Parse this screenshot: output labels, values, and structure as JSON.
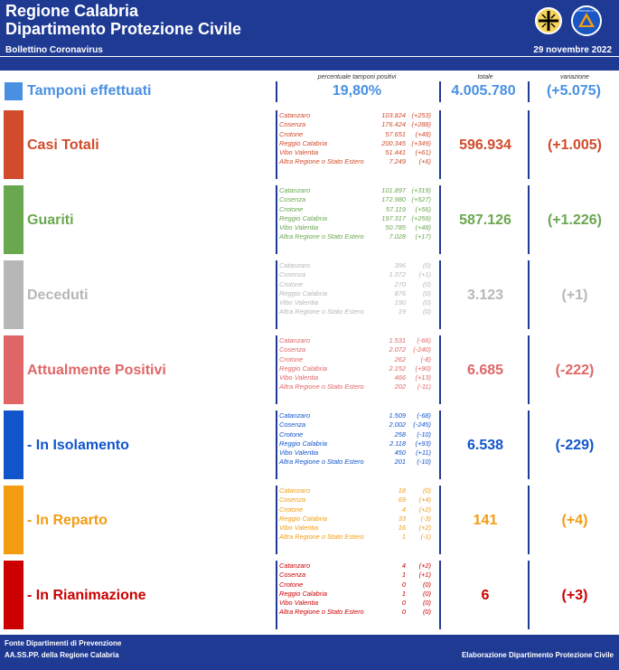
{
  "header": {
    "title_line1": "Regione Calabria",
    "title_line2": "Dipartimento Protezione Civile",
    "subtitle": "Bollettino Coronavirus",
    "date": "29 novembre 2022",
    "pc_logo_text": "PROTEZIONE CIVILE"
  },
  "column_headers": {
    "percent": "percentuale tamponi positivi",
    "total": "totale",
    "variation": "variazione"
  },
  "tamponi": {
    "label": "Tamponi effettuati",
    "percent": "19,80%",
    "total": "4.005.780",
    "variation": "(+5.075)",
    "color": "#4a90e2"
  },
  "sections": [
    {
      "label": "Casi Totali",
      "total": "596.934",
      "variation": "(+1.005)",
      "color": "#d24b2a",
      "rows": [
        {
          "name": "Catanzaro",
          "value": "103.824",
          "var": "(+253)"
        },
        {
          "name": "Cosenza",
          "value": "176.424",
          "var": "(+288)"
        },
        {
          "name": "Crotone",
          "value": "57.651",
          "var": "(+48)"
        },
        {
          "name": "Reggio Calabria",
          "value": "200.345",
          "var": "(+349)"
        },
        {
          "name": "Vibo Valentia",
          "value": "51.441",
          "var": "(+61)"
        },
        {
          "name": "Altra Regione o Stato Estero",
          "value": "7.249",
          "var": "(+6)"
        }
      ]
    },
    {
      "label": "Guariti",
      "total": "587.126",
      "variation": "(+1.226)",
      "color": "#6aa84f",
      "rows": [
        {
          "name": "Catanzaro",
          "value": "101.897",
          "var": "(+319)"
        },
        {
          "name": "Cosenza",
          "value": "172.980",
          "var": "(+527)"
        },
        {
          "name": "Crotone",
          "value": "57.119",
          "var": "(+56)"
        },
        {
          "name": "Reggio Calabria",
          "value": "197.317",
          "var": "(+259)"
        },
        {
          "name": "Vibo Valentia",
          "value": "50.785",
          "var": "(+48)"
        },
        {
          "name": "Altra Regione o Stato Estero",
          "value": "7.028",
          "var": "(+17)"
        }
      ]
    },
    {
      "label": "Deceduti",
      "total": "3.123",
      "variation": "(+1)",
      "color": "#b7b7b7",
      "rows": [
        {
          "name": "Catanzaro",
          "value": "396",
          "var": "(0)"
        },
        {
          "name": "Cosenza",
          "value": "1.372",
          "var": "(+1)"
        },
        {
          "name": "Crotone",
          "value": "270",
          "var": "(0)"
        },
        {
          "name": "Reggio Calabria",
          "value": "876",
          "var": "(0)"
        },
        {
          "name": "Vibo Valentia",
          "value": "190",
          "var": "(0)"
        },
        {
          "name": "Altra Regione o Stato Estero",
          "value": "19",
          "var": "(0)"
        }
      ]
    },
    {
      "label": "Attualmente Positivi",
      "total": "6.685",
      "variation": "(-222)",
      "color": "#e06666",
      "rows": [
        {
          "name": "Catanzaro",
          "value": "1.531",
          "var": "(-66)"
        },
        {
          "name": "Cosenza",
          "value": "2.072",
          "var": "(-240)"
        },
        {
          "name": "Crotone",
          "value": "262",
          "var": "(-8)"
        },
        {
          "name": "Reggio Calabria",
          "value": "2.152",
          "var": "(+90)"
        },
        {
          "name": "Vibo Valentia",
          "value": "466",
          "var": "(+13)"
        },
        {
          "name": "Altra Regione o Stato Estero",
          "value": "202",
          "var": "(-11)"
        }
      ]
    },
    {
      "label": " - In Isolamento",
      "total": "6.538",
      "variation": "(-229)",
      "color": "#1155cc",
      "rows": [
        {
          "name": "Catanzaro",
          "value": "1.509",
          "var": "(-68)"
        },
        {
          "name": "Cosenza",
          "value": "2.002",
          "var": "(-245)"
        },
        {
          "name": "Crotone",
          "value": "258",
          "var": "(-10)"
        },
        {
          "name": "Reggio Calabria",
          "value": "2.118",
          "var": "(+93)"
        },
        {
          "name": "Vibo Valentia",
          "value": "450",
          "var": "(+11)"
        },
        {
          "name": "Altra Regione o Stato Estero",
          "value": "201",
          "var": "(-10)"
        }
      ]
    },
    {
      "label": " - In Reparto",
      "total": "141",
      "variation": "(+4)",
      "color": "#f39c12",
      "rows": [
        {
          "name": "Catanzaro",
          "value": "18",
          "var": "(0)"
        },
        {
          "name": "Cosenza",
          "value": "69",
          "var": "(+4)"
        },
        {
          "name": "Crotone",
          "value": "4",
          "var": "(+2)"
        },
        {
          "name": "Reggio Calabria",
          "value": "33",
          "var": "(-3)"
        },
        {
          "name": "Vibo Valentia",
          "value": "16",
          "var": "(+2)"
        },
        {
          "name": "Altra Regione o Stato Estero",
          "value": "1",
          "var": "(-1)"
        }
      ]
    },
    {
      "label": " - In Rianimazione",
      "total": "6",
      "variation": "(+3)",
      "color": "#cc0000",
      "rows": [
        {
          "name": "Catanzaro",
          "value": "4",
          "var": "(+2)"
        },
        {
          "name": "Cosenza",
          "value": "1",
          "var": "(+1)"
        },
        {
          "name": "Crotone",
          "value": "0",
          "var": "(0)"
        },
        {
          "name": "Reggio Calabria",
          "value": "1",
          "var": "(0)"
        },
        {
          "name": "Vibo Valentia",
          "value": "0",
          "var": "(0)"
        },
        {
          "name": "Altra Regione o Stato Estero",
          "value": "0",
          "var": "(0)"
        }
      ]
    }
  ],
  "footer": {
    "line1": "Fonte Dipartimenti di Prevenzione",
    "line2": "AA.SS.PP.  della Regione Calabria",
    "right": "Elaborazione Dipartimento Protezione Civile"
  }
}
